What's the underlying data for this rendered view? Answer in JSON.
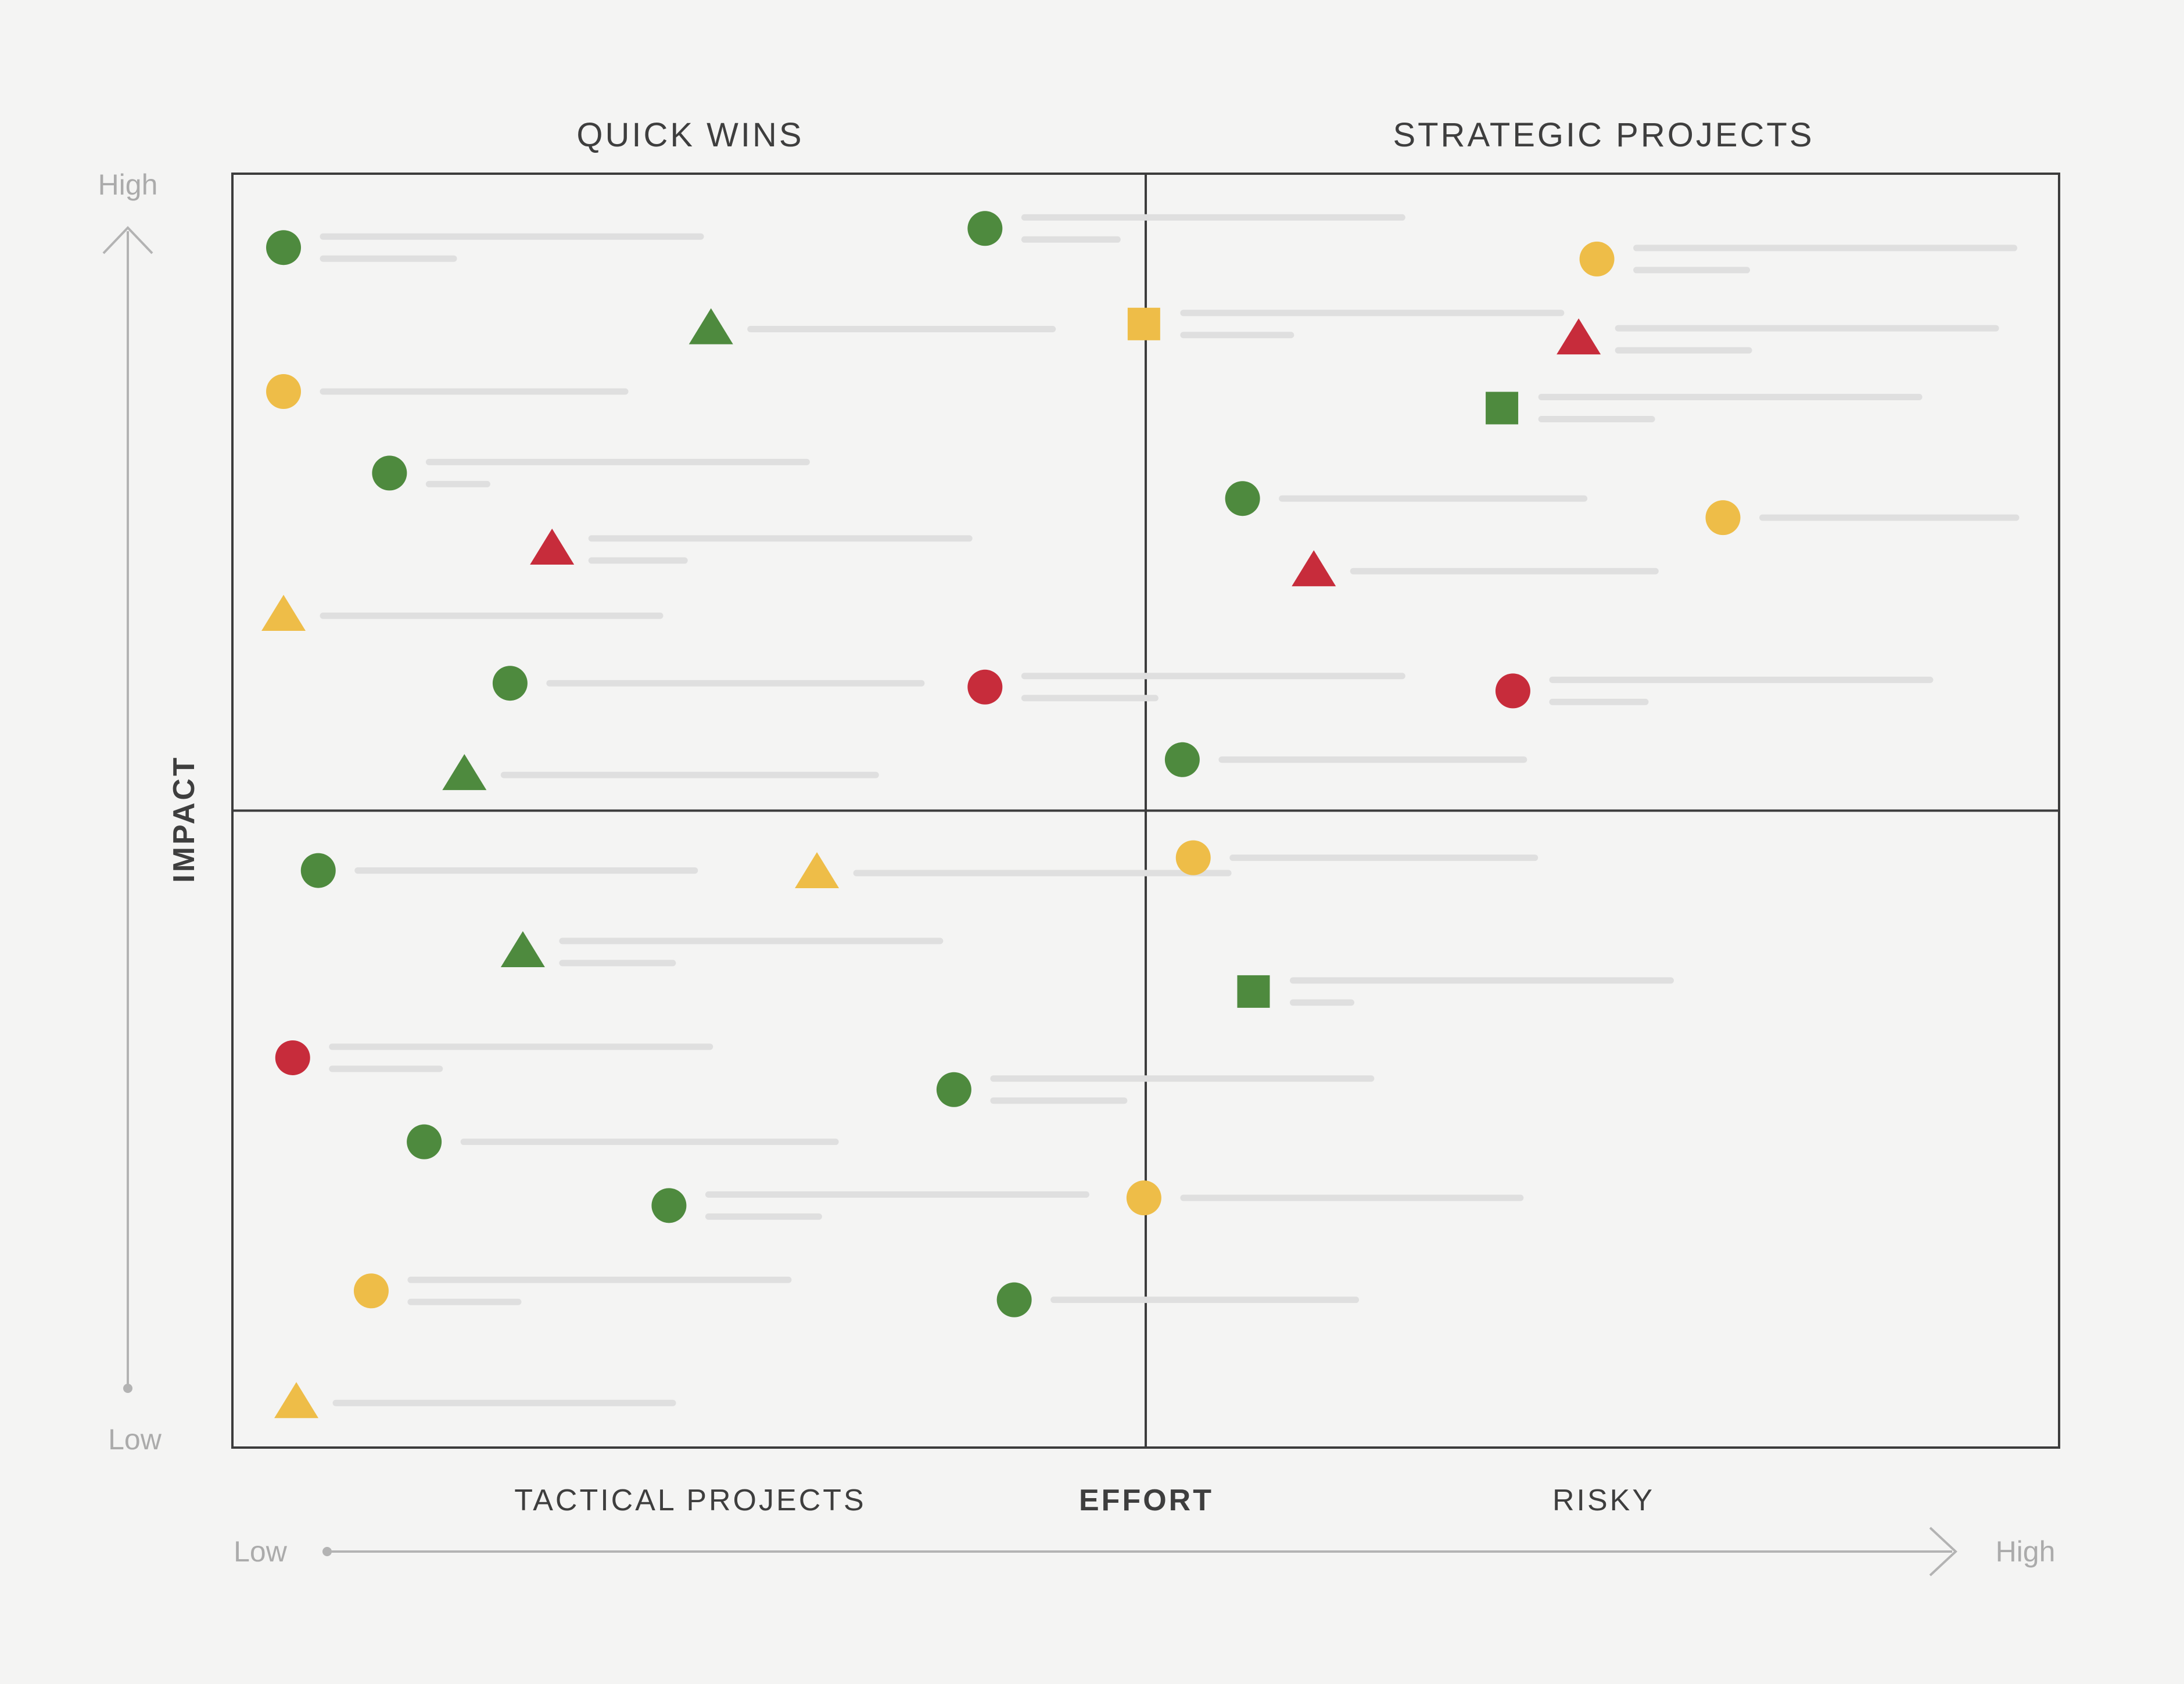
{
  "chart_data": {
    "type": "scatter",
    "title": "",
    "xlabel": "EFFORT",
    "ylabel": "IMPACT",
    "x_axis": {
      "low_label": "Low",
      "high_label": "High"
    },
    "y_axis": {
      "low_label": "Low",
      "high_label": "High"
    },
    "xlim": [
      0,
      100
    ],
    "ylim": [
      0,
      100
    ],
    "divider": {
      "x": 50,
      "y": 50
    },
    "grid": false,
    "quadrants": [
      {
        "id": "quick-wins",
        "label": "QUICK WINS",
        "position": "top-left"
      },
      {
        "id": "strategic-projects",
        "label": "STRATEGIC PROJECTS",
        "position": "top-right"
      },
      {
        "id": "tactical-projects",
        "label": "TACTICAL PROJECTS",
        "position": "bottom-left"
      },
      {
        "id": "risky",
        "label": "RISKY",
        "position": "bottom-right"
      }
    ],
    "colors": {
      "green": "#4e8a3e",
      "yellow": "#eebd48",
      "red": "#c72c3b",
      "placeholder": "#dfdfdf",
      "frame": "#3c3c3c",
      "axis": "#b3b3b3"
    },
    "points": [
      {
        "x": 2.8,
        "y": 94.2,
        "shape": "circle",
        "color": "green",
        "text_lines": 2
      },
      {
        "x": 41.2,
        "y": 95.7,
        "shape": "circle",
        "color": "green",
        "text_lines": 2
      },
      {
        "x": 74.7,
        "y": 93.3,
        "shape": "circle",
        "color": "yellow",
        "text_lines": 2
      },
      {
        "x": 26.2,
        "y": 87.8,
        "shape": "triangle",
        "color": "green",
        "text_lines": 1
      },
      {
        "x": 49.9,
        "y": 88.2,
        "shape": "square",
        "color": "yellow",
        "text_lines": 2
      },
      {
        "x": 73.7,
        "y": 87.0,
        "shape": "triangle",
        "color": "red",
        "text_lines": 2
      },
      {
        "x": 2.8,
        "y": 82.9,
        "shape": "circle",
        "color": "yellow",
        "text_lines": 1
      },
      {
        "x": 69.5,
        "y": 81.6,
        "shape": "square",
        "color": "green",
        "text_lines": 2
      },
      {
        "x": 8.6,
        "y": 76.5,
        "shape": "circle",
        "color": "green",
        "text_lines": 2
      },
      {
        "x": 55.3,
        "y": 74.5,
        "shape": "circle",
        "color": "green",
        "text_lines": 1
      },
      {
        "x": 81.6,
        "y": 73.0,
        "shape": "circle",
        "color": "yellow",
        "text_lines": 1
      },
      {
        "x": 17.5,
        "y": 70.5,
        "shape": "triangle",
        "color": "red",
        "text_lines": 2
      },
      {
        "x": 59.2,
        "y": 68.8,
        "shape": "triangle",
        "color": "red",
        "text_lines": 1
      },
      {
        "x": 2.8,
        "y": 65.3,
        "shape": "triangle",
        "color": "yellow",
        "text_lines": 1
      },
      {
        "x": 15.2,
        "y": 60.0,
        "shape": "circle",
        "color": "green",
        "text_lines": 1
      },
      {
        "x": 41.2,
        "y": 59.7,
        "shape": "circle",
        "color": "red",
        "text_lines": 2
      },
      {
        "x": 70.1,
        "y": 59.4,
        "shape": "circle",
        "color": "red",
        "text_lines": 2
      },
      {
        "x": 12.7,
        "y": 52.8,
        "shape": "triangle",
        "color": "green",
        "text_lines": 1
      },
      {
        "x": 52.0,
        "y": 54.0,
        "shape": "circle",
        "color": "green",
        "text_lines": 1
      },
      {
        "x": 4.7,
        "y": 45.3,
        "shape": "circle",
        "color": "green",
        "text_lines": 1
      },
      {
        "x": 32.0,
        "y": 45.1,
        "shape": "triangle",
        "color": "yellow",
        "text_lines": 1
      },
      {
        "x": 52.6,
        "y": 46.3,
        "shape": "circle",
        "color": "yellow",
        "text_lines": 1
      },
      {
        "x": 15.9,
        "y": 38.9,
        "shape": "triangle",
        "color": "green",
        "text_lines": 2
      },
      {
        "x": 55.9,
        "y": 35.8,
        "shape": "square",
        "color": "green",
        "text_lines": 2
      },
      {
        "x": 3.3,
        "y": 30.6,
        "shape": "circle",
        "color": "red",
        "text_lines": 2
      },
      {
        "x": 39.5,
        "y": 28.1,
        "shape": "circle",
        "color": "green",
        "text_lines": 2
      },
      {
        "x": 10.5,
        "y": 24.0,
        "shape": "circle",
        "color": "green",
        "text_lines": 1
      },
      {
        "x": 23.9,
        "y": 19.0,
        "shape": "circle",
        "color": "green",
        "text_lines": 2
      },
      {
        "x": 49.9,
        "y": 19.6,
        "shape": "circle",
        "color": "yellow",
        "text_lines": 1
      },
      {
        "x": 7.6,
        "y": 12.3,
        "shape": "circle",
        "color": "yellow",
        "text_lines": 2
      },
      {
        "x": 42.8,
        "y": 11.6,
        "shape": "circle",
        "color": "green",
        "text_lines": 1
      },
      {
        "x": 3.5,
        "y": 3.5,
        "shape": "triangle",
        "color": "yellow",
        "text_lines": 1
      }
    ]
  }
}
